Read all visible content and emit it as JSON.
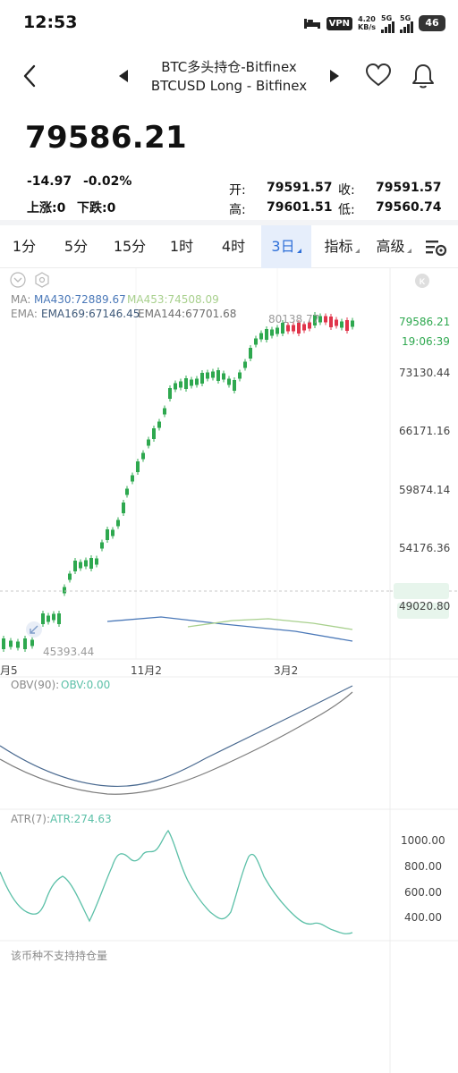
{
  "status_bar": {
    "time": "12:53",
    "vpn": "VPN",
    "net_speed_value": "4.20",
    "net_speed_unit": "KB/s",
    "signal1_label": "5G",
    "signal2_label": "5G",
    "battery": "46"
  },
  "header": {
    "title": "BTC多头持仓-Bitfinex",
    "subtitle": "BTCUSD Long - Bitfinex"
  },
  "quote": {
    "price": "79586.21",
    "change": "-14.97",
    "change_pct": "-0.02%",
    "up_label": "上涨:0",
    "down_label": "下跌:0",
    "open_label": "开:",
    "open": "79591.57",
    "close_label": "收:",
    "close": "79591.57",
    "high_label": "高:",
    "high": "79601.51",
    "low_label": "低:",
    "low": "79560.74"
  },
  "tabs": [
    {
      "label": "1分",
      "active": false
    },
    {
      "label": "5分",
      "active": false
    },
    {
      "label": "15分",
      "active": false
    },
    {
      "label": "1时",
      "active": false
    },
    {
      "label": "4时",
      "active": false
    },
    {
      "label": "3日",
      "active": true
    },
    {
      "label": "指标",
      "active": false
    },
    {
      "label": "高级",
      "active": false
    }
  ],
  "main_chart": {
    "ma_label": "MA:",
    "ma430": "MA430:72889.67",
    "ma453": "MA453:74508.09",
    "ema_label": "EMA:",
    "ema169": "EMA169:67146.45",
    "ema144": "EMA144:67701.68",
    "max_label": "80138.77",
    "min_label": "45393.44",
    "last_price_tag": "79586.21",
    "countdown_tag": "19:06:39",
    "y_ticks": [
      "73130.44",
      "66171.16",
      "59874.14",
      "54176.36",
      "49020.80"
    ],
    "x_ticks": [
      "月5",
      "11月2",
      "3月2"
    ],
    "colors": {
      "up": "#2ea84f",
      "down": "#e0344a",
      "ma430": "#4a78b8",
      "ma453": "#a8d08d",
      "ema169": "#3f5a7a",
      "ema144": "#8a8a8a"
    }
  },
  "obv": {
    "label": "OBV(90):",
    "value": "OBV:0.00"
  },
  "atr": {
    "label": "ATR(7):",
    "value": "ATR:274.63",
    "y_ticks": [
      "1000.00",
      "800.00",
      "600.00",
      "400.00"
    ],
    "color": "#5cc0a8"
  },
  "footer_note": "该币种不支持持仓量"
}
